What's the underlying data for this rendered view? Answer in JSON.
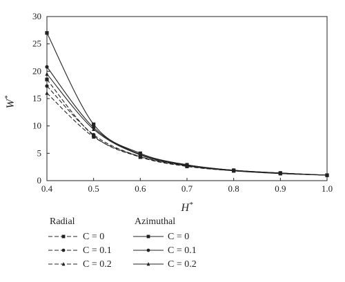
{
  "chart_data": {
    "type": "line",
    "xlabel_main": "H",
    "xlabel_sup": "*",
    "ylabel_main": "W",
    "ylabel_sup": "*",
    "xlim": [
      0.4,
      1.0
    ],
    "ylim": [
      0,
      30
    ],
    "xticks": [
      "0.4",
      "0.5",
      "0.6",
      "0.7",
      "0.8",
      "0.9",
      "1.0"
    ],
    "yticks": [
      "0",
      "5",
      "10",
      "15",
      "20",
      "25",
      "30"
    ],
    "grid": false,
    "legend_groups": [
      "Radial",
      "Azimuthal"
    ],
    "series": [
      {
        "name": "C = 0",
        "group": "Radial",
        "style": "dashed",
        "marker": "square",
        "x": [
          0.4,
          0.5,
          0.6,
          0.7,
          0.8,
          0.9,
          1.0
        ],
        "y": [
          18.5,
          8.2,
          4.3,
          2.6,
          1.8,
          1.3,
          1.0
        ]
      },
      {
        "name": "C = 0.1",
        "group": "Radial",
        "style": "dashed",
        "marker": "circle",
        "x": [
          0.4,
          0.5,
          0.6,
          0.7,
          0.8,
          0.9,
          1.0
        ],
        "y": [
          17.3,
          8.4,
          4.4,
          2.7,
          1.8,
          1.3,
          1.0
        ]
      },
      {
        "name": "C = 0.2",
        "group": "Radial",
        "style": "dashed",
        "marker": "triangle",
        "x": [
          0.4,
          0.5,
          0.6,
          0.7,
          0.8,
          0.9,
          1.0
        ],
        "y": [
          16.0,
          8.0,
          4.4,
          2.7,
          1.8,
          1.3,
          1.0
        ]
      },
      {
        "name": "C = 0",
        "group": "Azimuthal",
        "style": "solid",
        "marker": "square",
        "x": [
          0.4,
          0.5,
          0.6,
          0.7,
          0.8,
          0.9,
          1.0
        ],
        "y": [
          27.0,
          10.3,
          5.0,
          2.9,
          1.9,
          1.4,
          1.0
        ]
      },
      {
        "name": "C = 0.1",
        "group": "Azimuthal",
        "style": "solid",
        "marker": "circle",
        "x": [
          0.4,
          0.5,
          0.6,
          0.7,
          0.8,
          0.9,
          1.0
        ],
        "y": [
          20.8,
          9.7,
          4.8,
          2.9,
          1.9,
          1.4,
          1.0
        ]
      },
      {
        "name": "C = 0.2",
        "group": "Azimuthal",
        "style": "solid",
        "marker": "triangle",
        "x": [
          0.4,
          0.5,
          0.6,
          0.7,
          0.8,
          0.9,
          1.0
        ],
        "y": [
          19.5,
          9.4,
          4.7,
          2.8,
          1.9,
          1.4,
          1.0
        ]
      }
    ]
  }
}
